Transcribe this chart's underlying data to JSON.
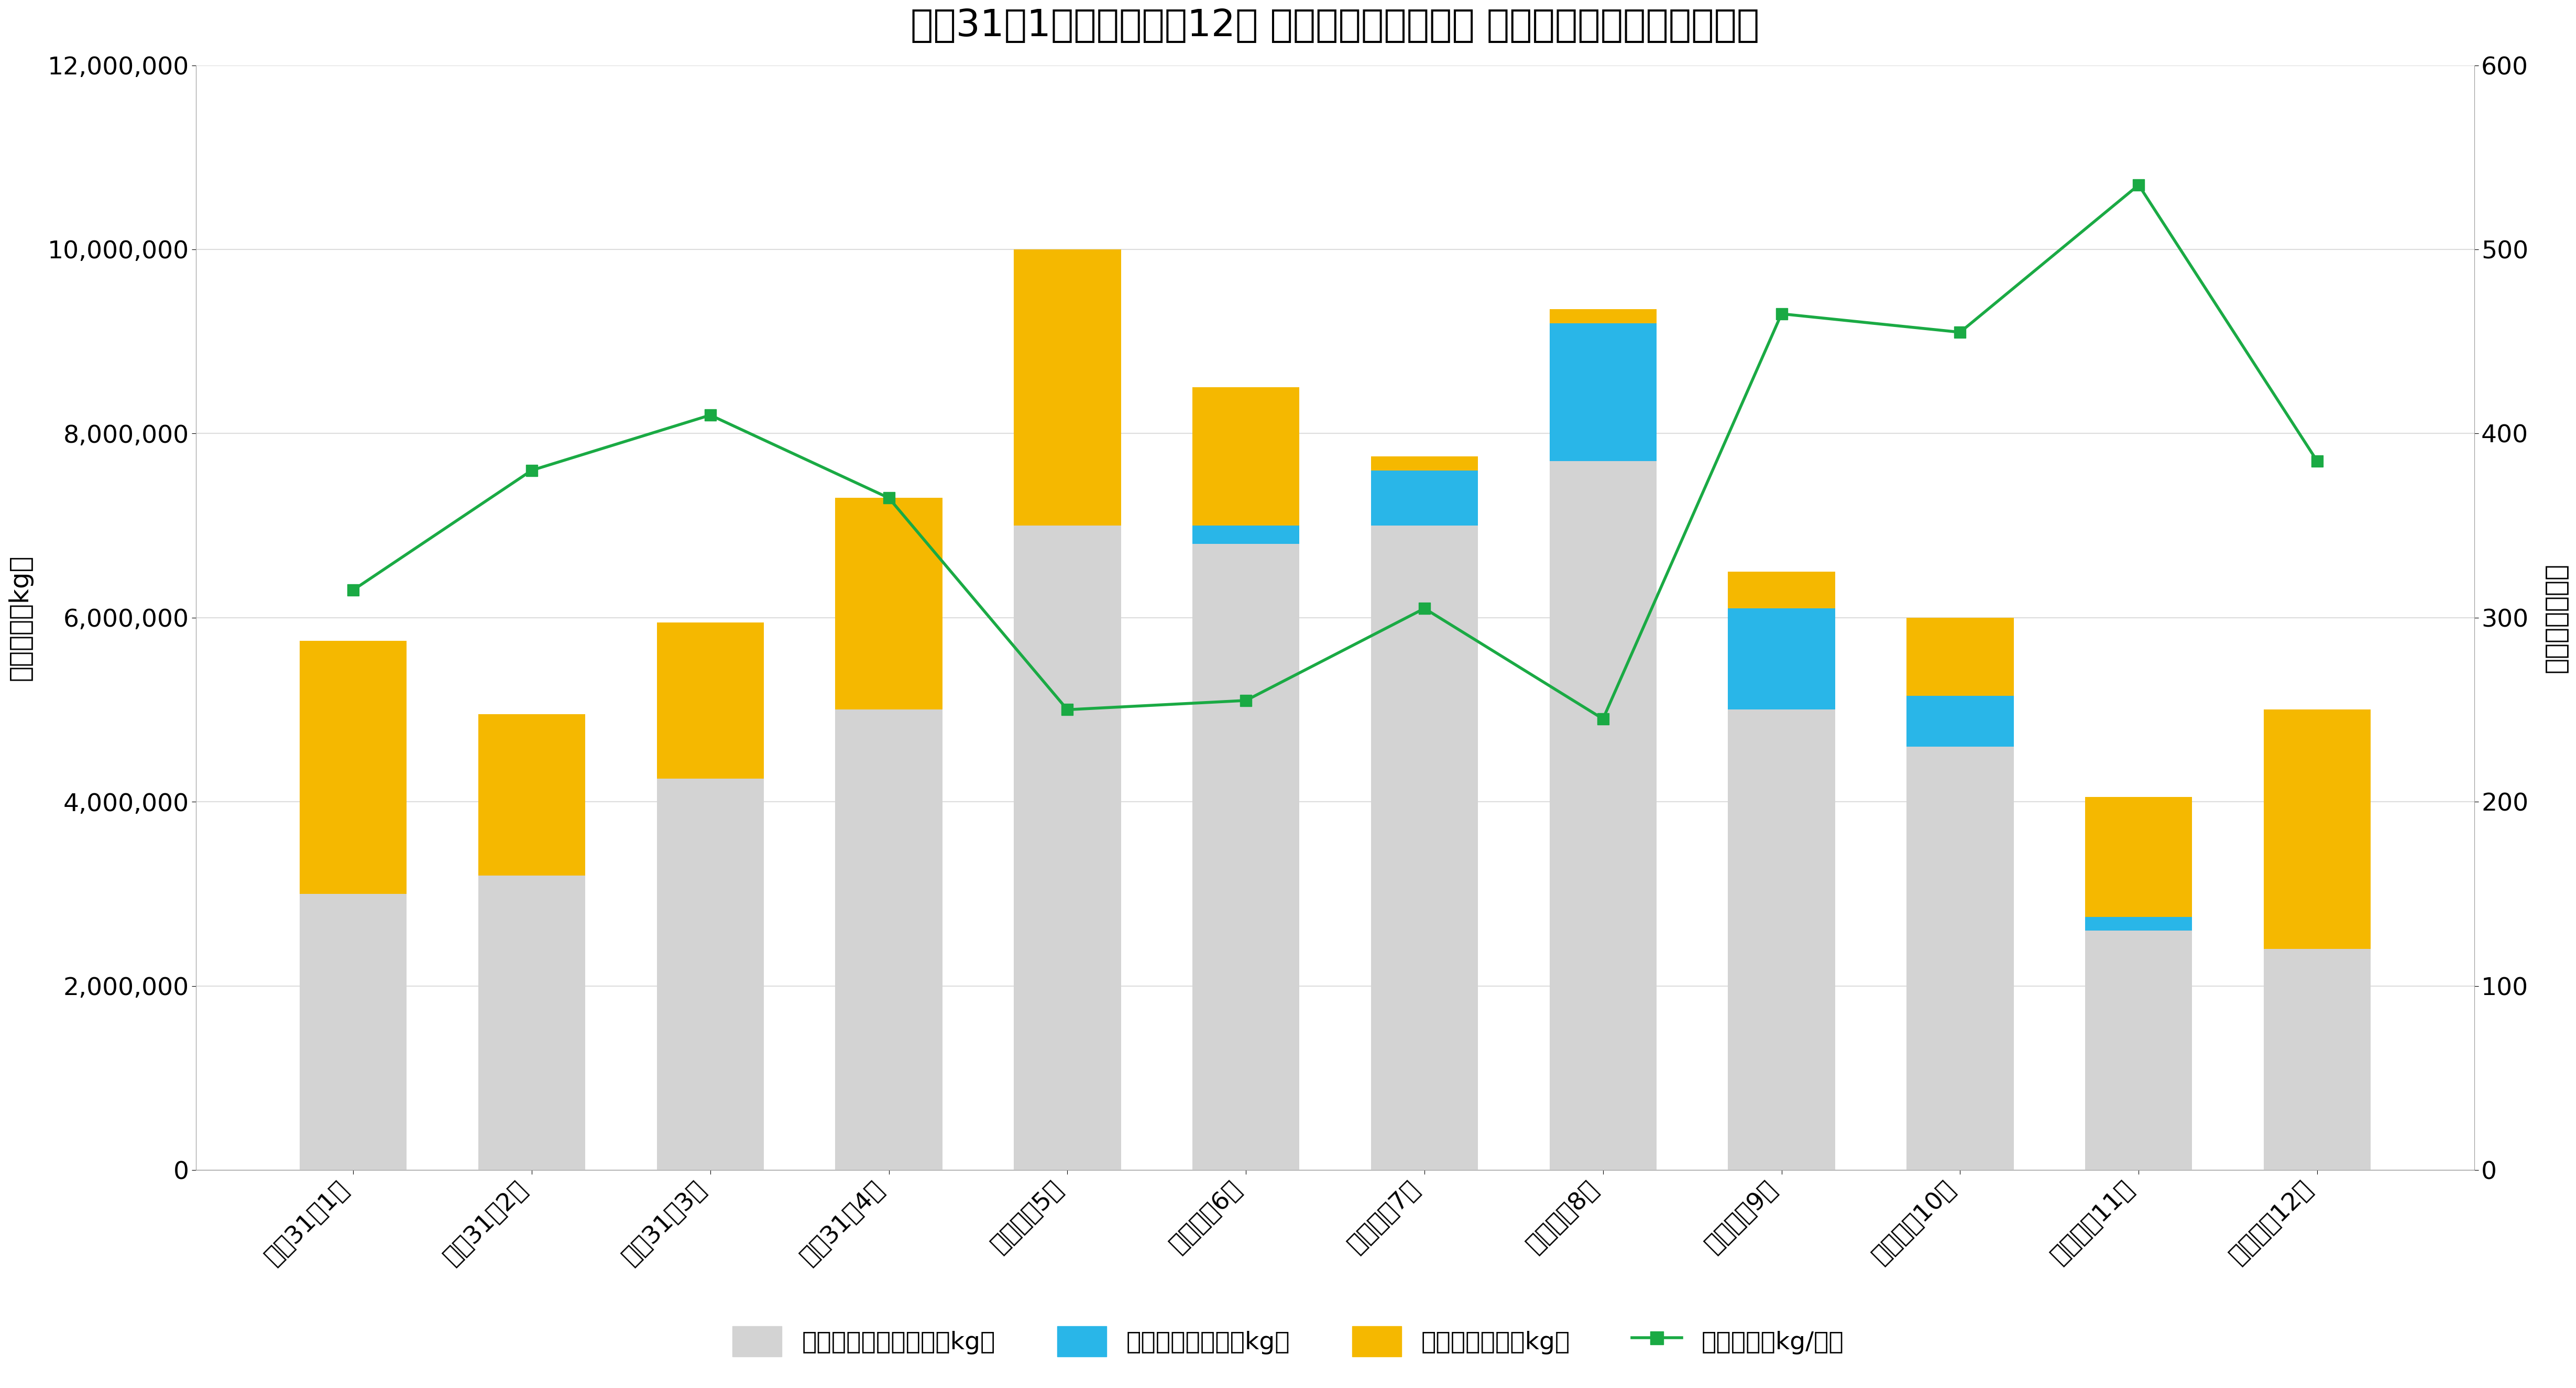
{
  "title": "平成31年1月〜令和元年12月 東京都中央卸売市場 トマト取扱数量と平均価格",
  "categories": [
    "平成31年1月",
    "平成31年2月",
    "平成31年3月",
    "平成31年4月",
    "令和元年5月",
    "令和元年6月",
    "令和元年7月",
    "令和元年8月",
    "令和元年9月",
    "令和元年10月",
    "令和元年11月",
    "令和元年12月"
  ],
  "other_volume": [
    3000000,
    3200000,
    4250000,
    5000000,
    7000000,
    6800000,
    7000000,
    7700000,
    5000000,
    4600000,
    2600000,
    2400000
  ],
  "hokkaido_volume": [
    0,
    0,
    0,
    0,
    0,
    200000,
    600000,
    1500000,
    1100000,
    550000,
    150000,
    0
  ],
  "kumamoto_volume": [
    2750000,
    1750000,
    1700000,
    2300000,
    3000000,
    1500000,
    150000,
    150000,
    400000,
    850000,
    1300000,
    2600000
  ],
  "avg_price": [
    315,
    380,
    410,
    365,
    250,
    255,
    305,
    245,
    465,
    455,
    535,
    385
  ],
  "ylabel_left": "取扱数量（kg）",
  "ylabel_right": "平均価格（円）",
  "ylim_left": [
    0,
    12000000
  ],
  "ylim_right": [
    0,
    600
  ],
  "yticks_left": [
    0,
    2000000,
    4000000,
    6000000,
    8000000,
    10000000,
    12000000
  ],
  "yticks_right": [
    0,
    100,
    200,
    300,
    400,
    500,
    600
  ],
  "bar_color_other": "#d3d3d3",
  "bar_color_hokkaido": "#29b6e8",
  "bar_color_kumamoto": "#f5b800",
  "line_color": "#1aaa44",
  "legend_labels": [
    "その他産地取扱数量（kg）",
    "北海道取扱数量（kg）",
    "熊本取扱数量（kg）",
    "平均価格（kg/円）"
  ],
  "background_color": "#ffffff",
  "title_fontsize": 52,
  "axis_label_fontsize": 36,
  "tick_fontsize": 34,
  "legend_fontsize": 34
}
